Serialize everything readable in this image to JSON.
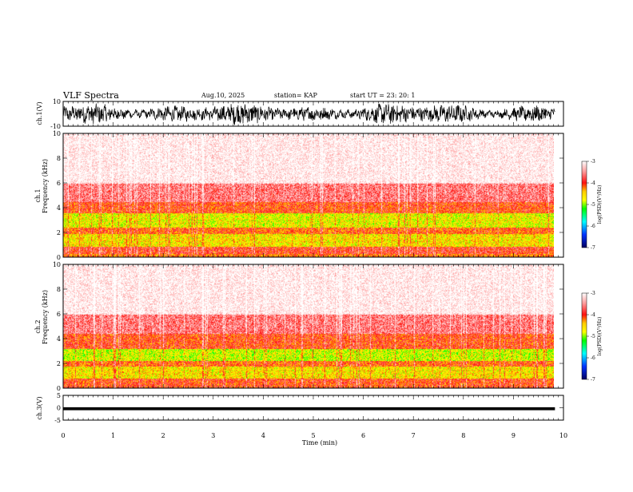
{
  "header": {
    "title": "VLF Spectra",
    "date": "Aug.10, 2025",
    "station": "station= KAP",
    "start": "start  UT  =   23: 20: 1"
  },
  "chart_data": [
    {
      "type": "line",
      "name": "ch1-waveform",
      "ylabel": "ch.1(V)",
      "ylim": [
        -10,
        10
      ],
      "yticks": [
        {
          "v": 10,
          "label": "10"
        },
        {
          "v": -10,
          "label": "-10"
        }
      ],
      "xlim": [
        0,
        10
      ]
    },
    {
      "type": "heatmap",
      "name": "ch1-spectrogram",
      "ylabel_lines": [
        "ch.1",
        "Frequency (kHz)"
      ],
      "ylim": [
        0,
        10
      ],
      "yticks": [
        "0",
        "2",
        "4",
        "6",
        "8",
        "10"
      ],
      "xlim": [
        0,
        9.83
      ],
      "intensity_bands_khz": [
        {
          "from": 0,
          "to": 0.3,
          "level": -4.2
        },
        {
          "from": 0.3,
          "to": 0.9,
          "level": -3.9
        },
        {
          "from": 0.9,
          "to": 1.9,
          "level": -4.6
        },
        {
          "from": 1.9,
          "to": 2.4,
          "level": -4.1
        },
        {
          "from": 2.4,
          "to": 3.6,
          "level": -4.7
        },
        {
          "from": 3.6,
          "to": 4.5,
          "level": -4.0
        },
        {
          "from": 4.5,
          "to": 6.0,
          "level": -3.6
        },
        {
          "from": 6.0,
          "to": 10,
          "level": -3.2
        }
      ],
      "colorbar": {
        "label": "log(PSD)(V²/Hz)",
        "range": [
          -7,
          -3
        ],
        "ticks": [
          "-3",
          "-4",
          "-5",
          "-6",
          "-7"
        ]
      }
    },
    {
      "type": "heatmap",
      "name": "ch2-spectrogram",
      "ylabel_lines": [
        "ch.2",
        "Frequency (kHz)"
      ],
      "ylim": [
        0,
        10
      ],
      "yticks": [
        "0",
        "2",
        "4",
        "6",
        "8",
        "10"
      ],
      "xlim": [
        0,
        9.83
      ],
      "intensity_bands_khz": [
        {
          "from": 0,
          "to": 0.8,
          "level": -4.0
        },
        {
          "from": 0.8,
          "to": 1.8,
          "level": -4.6
        },
        {
          "from": 1.8,
          "to": 2.2,
          "level": -4.1
        },
        {
          "from": 2.2,
          "to": 3.2,
          "level": -4.8
        },
        {
          "from": 3.2,
          "to": 4.4,
          "level": -4.0
        },
        {
          "from": 4.4,
          "to": 6.0,
          "level": -3.6
        },
        {
          "from": 6.0,
          "to": 10,
          "level": -3.2
        }
      ],
      "colorbar": {
        "label": "log(PSD)(V²/Hz)",
        "range": [
          -7,
          -3
        ],
        "ticks": [
          "-3",
          "-4",
          "-5",
          "-6",
          "-7"
        ]
      }
    },
    {
      "type": "line",
      "name": "ch3-waveform",
      "ylabel": "ch.3(V)",
      "ylim": [
        -5,
        5
      ],
      "yticks": [
        {
          "v": 5,
          "label": "5"
        },
        {
          "v": 0,
          "label": "0"
        },
        {
          "v": -5,
          "label": "-5"
        }
      ],
      "xlim": [
        0,
        10
      ],
      "band": [
        -1.0,
        0.2
      ]
    }
  ],
  "xaxis": {
    "label": "Time (min)",
    "ticks": [
      "0",
      "1",
      "2",
      "3",
      "4",
      "5",
      "6",
      "7",
      "8",
      "9",
      "10"
    ]
  },
  "colors": {
    "trace": "#000000",
    "frame": "#000000"
  }
}
